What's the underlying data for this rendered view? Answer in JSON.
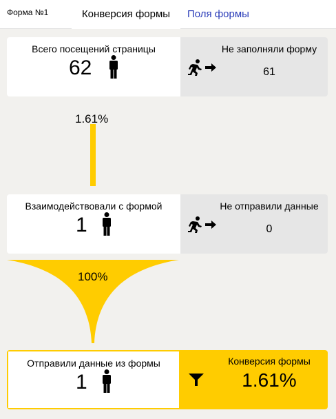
{
  "tabs": {
    "form_name": "Форма №1",
    "conversion": "Конверсия формы",
    "fields": "Поля формы"
  },
  "funnel": [
    {
      "label": "Всего посещений страницы",
      "value": "62",
      "drop_label": "Не заполняли форму",
      "drop_value": "61"
    },
    {
      "label": "Взаимодействовали с формой",
      "value": "1",
      "drop_label": "Не отправили данные",
      "drop_value": "0"
    },
    {
      "label": "Отправили данные из формы",
      "value": "1",
      "conversion_label": "Конверсия формы",
      "conversion_value": "1.61%"
    }
  ],
  "transitions": [
    "1.61%",
    "100%"
  ],
  "colors": {
    "accent": "#ffcc00",
    "link": "#2a3cb8",
    "card_gray": "#e6e6e6",
    "background": "#f2f1ee"
  },
  "icons": {
    "visitor": "person-icon",
    "exit": "running-person-icon",
    "arrow": "arrow-right-icon",
    "conversion": "funnel-icon"
  }
}
